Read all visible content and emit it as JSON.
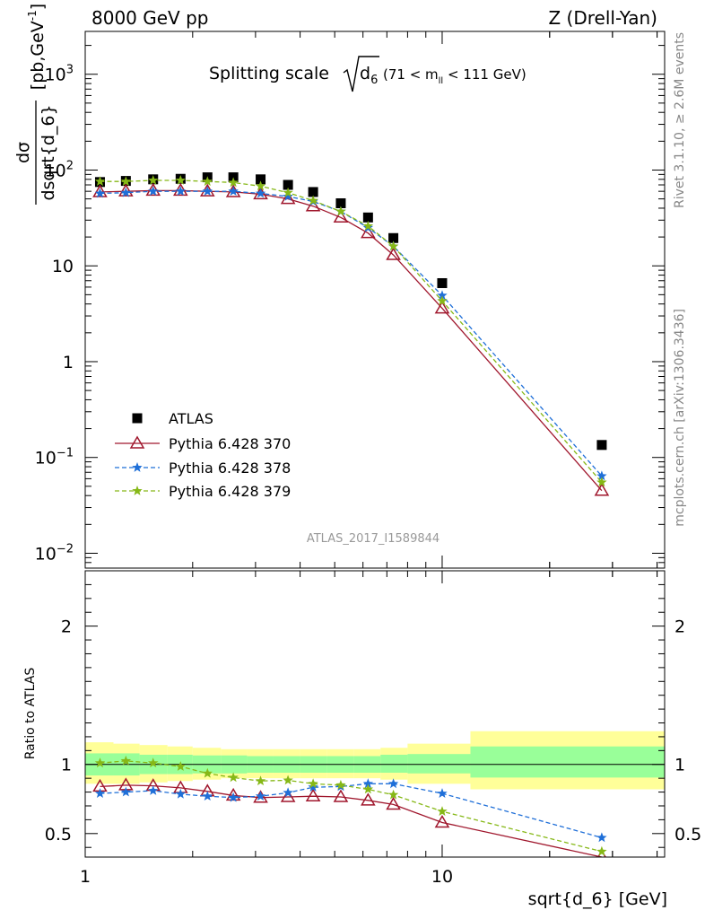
{
  "header": {
    "left": "8000 GeV pp",
    "right": "Z (Drell-Yan)"
  },
  "title": {
    "prefix": "Splitting scale",
    "radicand": "d",
    "radicand_sub": "6",
    "range_open": "(71 < m",
    "range_sub": "ll",
    "range_close": " < 111 GeV)"
  },
  "side_labels": {
    "rivet": "Rivet 3.1.10, ≥ 2.6M events",
    "mcplots": "mcplots.cern.ch [arXiv:1306.3436]"
  },
  "analysis_id": "ATLAS_2017_I1589844",
  "colors": {
    "atlas": "#000000",
    "p370": "#a0172d",
    "p378": "#1f6fd8",
    "p379": "#86b817",
    "band_inner": "#99ff99",
    "band_outer": "#ffff99"
  },
  "chart_data": [
    {
      "type": "scatter",
      "x_scale": "log",
      "y_scale": "log",
      "xlim": [
        1,
        42
      ],
      "ylim": [
        0.007,
        2800
      ],
      "ylabel_num": "dσ",
      "ylabel_den": "dsqrt{d_6}",
      "ylabel_units": "[pb,GeV",
      "ylabel_units_sup": "-1",
      "ylabel_units_close": "]",
      "y_tick_labels": [
        {
          "value": 0.01,
          "base": "10",
          "sup": "−2"
        },
        {
          "value": 0.1,
          "base": "10",
          "sup": "−1"
        },
        {
          "value": 1,
          "base": "1",
          "sup": ""
        },
        {
          "value": 10,
          "base": "10",
          "sup": ""
        },
        {
          "value": 100,
          "base": "10",
          "sup": "2"
        },
        {
          "value": 1000,
          "base": "10",
          "sup": "3"
        }
      ],
      "legend_position": "lower-left",
      "x": [
        1.1,
        1.3,
        1.55,
        1.85,
        2.2,
        2.6,
        3.1,
        3.7,
        4.35,
        5.2,
        6.2,
        7.3,
        10.0,
        28.0
      ],
      "series": [
        {
          "key": "atlas",
          "name": "ATLAS",
          "marker": "square",
          "values": [
            75,
            77,
            80,
            81,
            84,
            84,
            80,
            70,
            59,
            45,
            32,
            19.5,
            6.6,
            0.135
          ]
        },
        {
          "key": "p370",
          "name": "Pythia 6.428 370",
          "marker": "triangle",
          "line": "solid",
          "values": [
            59,
            60,
            61,
            61,
            60,
            59,
            56,
            50,
            42,
            32,
            22,
            13,
            3.6,
            0.045
          ]
        },
        {
          "key": "p378",
          "name": "Pythia 6.428 378",
          "marker": "star",
          "line": "dashed",
          "values": [
            57,
            58,
            60,
            60,
            60,
            60,
            57,
            53,
            47,
            37,
            25,
            16,
            4.9,
            0.064
          ]
        },
        {
          "key": "p379",
          "name": "Pythia 6.428 379",
          "marker": "star",
          "line": "dashed",
          "values": [
            76,
            76,
            78,
            78,
            76,
            74,
            68,
            58,
            48,
            37,
            26,
            16,
            4.3,
            0.055
          ]
        }
      ]
    },
    {
      "type": "line",
      "x_scale": "log",
      "xlim": [
        1,
        42
      ],
      "ylim": [
        0.33,
        2.4
      ],
      "ylabel": "Ratio to ATLAS",
      "xlabel": "sqrt{d_6} [GeV]",
      "x_tick_labels": [
        {
          "value": 1,
          "label": "1"
        },
        {
          "value": 10,
          "label": "10"
        }
      ],
      "y_tick_labels": [
        {
          "value": 0.5,
          "label": "0.5"
        },
        {
          "value": 1,
          "label": "1"
        },
        {
          "value": 2,
          "label": "2"
        }
      ],
      "reference": 1,
      "bands": [
        {
          "x0": 1.0,
          "x1": 1.2,
          "inner": [
            0.92,
            1.08
          ],
          "outer": [
            0.86,
            1.16
          ]
        },
        {
          "x0": 1.2,
          "x1": 1.42,
          "inner": [
            0.92,
            1.08
          ],
          "outer": [
            0.86,
            1.15
          ]
        },
        {
          "x0": 1.42,
          "x1": 1.7,
          "inner": [
            0.93,
            1.07
          ],
          "outer": [
            0.87,
            1.14
          ]
        },
        {
          "x0": 1.7,
          "x1": 2.0,
          "inner": [
            0.93,
            1.07
          ],
          "outer": [
            0.88,
            1.13
          ]
        },
        {
          "x0": 2.0,
          "x1": 2.4,
          "inner": [
            0.935,
            1.065
          ],
          "outer": [
            0.89,
            1.12
          ]
        },
        {
          "x0": 2.4,
          "x1": 2.84,
          "inner": [
            0.935,
            1.065
          ],
          "outer": [
            0.9,
            1.11
          ]
        },
        {
          "x0": 2.84,
          "x1": 3.36,
          "inner": [
            0.94,
            1.06
          ],
          "outer": [
            0.9,
            1.11
          ]
        },
        {
          "x0": 3.36,
          "x1": 4.0,
          "inner": [
            0.94,
            1.06
          ],
          "outer": [
            0.9,
            1.11
          ]
        },
        {
          "x0": 4.0,
          "x1": 4.75,
          "inner": [
            0.94,
            1.06
          ],
          "outer": [
            0.9,
            1.11
          ]
        },
        {
          "x0": 4.75,
          "x1": 5.65,
          "inner": [
            0.94,
            1.06
          ],
          "outer": [
            0.9,
            1.11
          ]
        },
        {
          "x0": 5.65,
          "x1": 6.72,
          "inner": [
            0.94,
            1.06
          ],
          "outer": [
            0.9,
            1.11
          ]
        },
        {
          "x0": 6.72,
          "x1": 8.0,
          "inner": [
            0.94,
            1.07
          ],
          "outer": [
            0.89,
            1.12
          ]
        },
        {
          "x0": 8.0,
          "x1": 12.0,
          "inner": [
            0.935,
            1.075
          ],
          "outer": [
            0.86,
            1.15
          ]
        },
        {
          "x0": 12.0,
          "x1": 42.0,
          "inner": [
            0.905,
            1.13
          ],
          "outer": [
            0.82,
            1.24
          ]
        }
      ],
      "x": [
        1.1,
        1.3,
        1.55,
        1.85,
        2.2,
        2.6,
        3.1,
        3.7,
        4.35,
        5.2,
        6.2,
        7.3,
        10.0,
        28.0
      ],
      "series": [
        {
          "key": "p370",
          "marker": "triangle",
          "line": "solid",
          "values": [
            0.84,
            0.85,
            0.845,
            0.83,
            0.805,
            0.775,
            0.76,
            0.765,
            0.77,
            0.765,
            0.74,
            0.71,
            0.58,
            0.33
          ]
        },
        {
          "key": "p378",
          "marker": "star",
          "line": "dashed",
          "values": [
            0.79,
            0.8,
            0.81,
            0.785,
            0.77,
            0.76,
            0.77,
            0.795,
            0.835,
            0.84,
            0.86,
            0.86,
            0.79,
            0.47
          ]
        },
        {
          "key": "p379",
          "marker": "star",
          "line": "dashed",
          "values": [
            1.01,
            1.025,
            1.01,
            0.985,
            0.935,
            0.905,
            0.88,
            0.885,
            0.86,
            0.85,
            0.82,
            0.78,
            0.66,
            0.37
          ]
        }
      ]
    }
  ]
}
